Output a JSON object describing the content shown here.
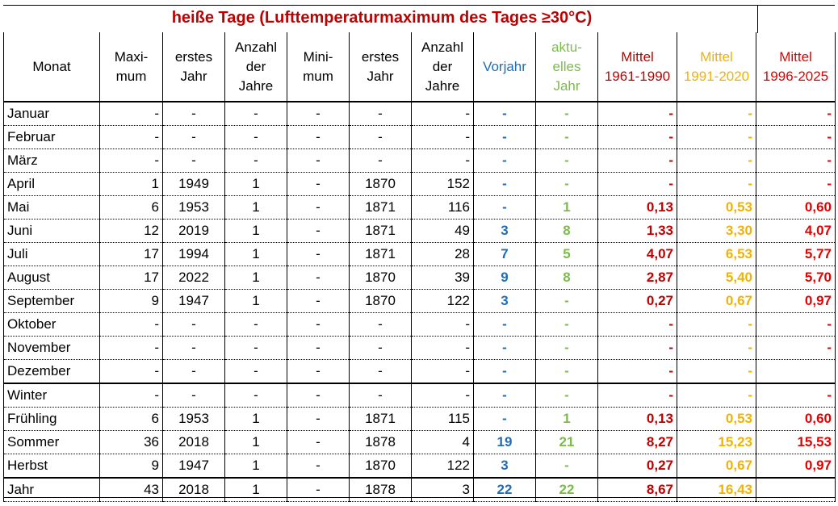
{
  "title": "heiße Tage (Lufttemperaturmaximum des Tages ≥30°C)",
  "headers": {
    "monat": "Monat",
    "maximum": "Maxi-\nmum",
    "erstes_jahr_max": "erstes\nJahr",
    "anzahl_jahre_max": "Anzahl\nder\nJahre",
    "minimum": "Mini-\nmum",
    "erstes_jahr_min": "erstes\nJahr",
    "anzahl_jahre_min": "Anzahl\nder\nJahre",
    "vorjahr": "Vorjahr",
    "aktuelles_jahr": "aktu-\nelles\nJahr",
    "mittel_1961": "Mittel\n1961-1990",
    "mittel_1991": "Mittel\n1991-2020",
    "mittel_1996": "Mittel\n1996-2025"
  },
  "colors": {
    "title": "#c00000",
    "vorjahr": "#1f6db8",
    "aktuelles_jahr": "#7cbc4a",
    "mittel_1961": "#c00000",
    "mittel_1991": "#f2b200",
    "mittel_1996": "#e60000"
  },
  "rows": [
    {
      "monat": "Januar",
      "max": "-",
      "ej_max": "-",
      "anz_max": "-",
      "min": "-",
      "ej_min": "-",
      "anz_min": "-",
      "vorjahr": "-",
      "akt": "-",
      "m1961": "-",
      "m1991": "-",
      "m1996": "-"
    },
    {
      "monat": "Februar",
      "max": "-",
      "ej_max": "-",
      "anz_max": "-",
      "min": "-",
      "ej_min": "-",
      "anz_min": "-",
      "vorjahr": "-",
      "akt": "-",
      "m1961": "-",
      "m1991": "-",
      "m1996": "-"
    },
    {
      "monat": "März",
      "max": "-",
      "ej_max": "-",
      "anz_max": "-",
      "min": "-",
      "ej_min": "-",
      "anz_min": "-",
      "vorjahr": "-",
      "akt": "-",
      "m1961": "-",
      "m1991": "-",
      "m1996": "-"
    },
    {
      "monat": "April",
      "max": "1",
      "ej_max": "1949",
      "anz_max": "1",
      "min": "-",
      "ej_min": "1870",
      "anz_min": "152",
      "vorjahr": "-",
      "akt": "-",
      "m1961": "-",
      "m1991": "-",
      "m1996": "-"
    },
    {
      "monat": "Mai",
      "max": "6",
      "ej_max": "1953",
      "anz_max": "1",
      "min": "-",
      "ej_min": "1871",
      "anz_min": "116",
      "vorjahr": "-",
      "akt": "1",
      "m1961": "0,13",
      "m1991": "0,53",
      "m1996": "0,60"
    },
    {
      "monat": "Juni",
      "max": "12",
      "ej_max": "2019",
      "anz_max": "1",
      "min": "-",
      "ej_min": "1871",
      "anz_min": "49",
      "vorjahr": "3",
      "akt": "8",
      "m1961": "1,33",
      "m1991": "3,30",
      "m1996": "4,07"
    },
    {
      "monat": "Juli",
      "max": "17",
      "ej_max": "1994",
      "anz_max": "1",
      "min": "-",
      "ej_min": "1871",
      "anz_min": "28",
      "vorjahr": "7",
      "akt": "5",
      "m1961": "4,07",
      "m1991": "6,53",
      "m1996": "5,77"
    },
    {
      "monat": "August",
      "max": "17",
      "ej_max": "2022",
      "anz_max": "1",
      "min": "-",
      "ej_min": "1870",
      "anz_min": "39",
      "vorjahr": "9",
      "akt": "8",
      "m1961": "2,87",
      "m1991": "5,40",
      "m1996": "5,70"
    },
    {
      "monat": "September",
      "max": "9",
      "ej_max": "1947",
      "anz_max": "1",
      "min": "-",
      "ej_min": "1870",
      "anz_min": "122",
      "vorjahr": "3",
      "akt": "-",
      "m1961": "0,27",
      "m1991": "0,67",
      "m1996": "0,97"
    },
    {
      "monat": "Oktober",
      "max": "-",
      "ej_max": "-",
      "anz_max": "-",
      "min": "-",
      "ej_min": "-",
      "anz_min": "-",
      "vorjahr": "-",
      "akt": "-",
      "m1961": "-",
      "m1991": "-",
      "m1996": "-"
    },
    {
      "monat": "November",
      "max": "-",
      "ej_max": "-",
      "anz_max": "-",
      "min": "-",
      "ej_min": "-",
      "anz_min": "-",
      "vorjahr": "-",
      "akt": "-",
      "m1961": "-",
      "m1991": "-",
      "m1996": "-"
    },
    {
      "monat": "Dezember",
      "max": "-",
      "ej_max": "-",
      "anz_max": "-",
      "min": "-",
      "ej_min": "-",
      "anz_min": "-",
      "vorjahr": "-",
      "akt": "-",
      "m1961": "-",
      "m1991": "-",
      "m1996": ""
    },
    {
      "monat": "Winter",
      "max": "-",
      "ej_max": "-",
      "anz_max": "-",
      "min": "-",
      "ej_min": "-",
      "anz_min": "-",
      "vorjahr": "-",
      "akt": "-",
      "m1961": "-",
      "m1991": "-",
      "m1996": "-"
    },
    {
      "monat": "Frühling",
      "max": "6",
      "ej_max": "1953",
      "anz_max": "1",
      "min": "-",
      "ej_min": "1871",
      "anz_min": "115",
      "vorjahr": "-",
      "akt": "1",
      "m1961": "0,13",
      "m1991": "0,53",
      "m1996": "0,60"
    },
    {
      "monat": "Sommer",
      "max": "36",
      "ej_max": "2018",
      "anz_max": "1",
      "min": "-",
      "ej_min": "1878",
      "anz_min": "4",
      "vorjahr": "19",
      "akt": "21",
      "m1961": "8,27",
      "m1991": "15,23",
      "m1996": "15,53"
    },
    {
      "monat": "Herbst",
      "max": "9",
      "ej_max": "1947",
      "anz_max": "1",
      "min": "-",
      "ej_min": "1870",
      "anz_min": "122",
      "vorjahr": "3",
      "akt": "-",
      "m1961": "0,27",
      "m1991": "0,67",
      "m1996": "0,97"
    },
    {
      "monat": "Jahr",
      "max": "43",
      "ej_max": "2018",
      "anz_max": "1",
      "min": "-",
      "ej_min": "1878",
      "anz_min": "3",
      "vorjahr": "22",
      "akt": "22",
      "m1961": "8,67",
      "m1991": "16,43",
      "m1996": ""
    }
  ]
}
